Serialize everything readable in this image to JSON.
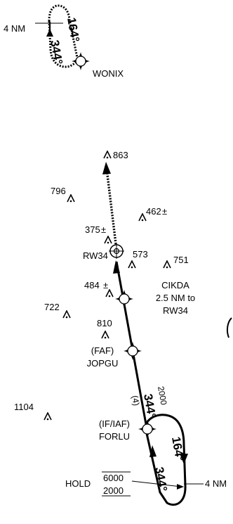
{
  "hold_top": {
    "distance": "4 NM",
    "inbound_course": "344°",
    "outbound_course": "164°",
    "fix_name": "WONIX"
  },
  "obstacles": [
    {
      "elevation": "863"
    },
    {
      "elevation": "796"
    },
    {
      "elevation": "462",
      "suffix": "±"
    },
    {
      "elevation": "375",
      "suffix": "±"
    },
    {
      "elevation": "573"
    },
    {
      "elevation": "751"
    },
    {
      "elevation": "484",
      "suffix": "±"
    },
    {
      "elevation": "722"
    },
    {
      "elevation": "810"
    },
    {
      "elevation": "1104"
    }
  ],
  "runway_waypoint": "RW34",
  "cikda": {
    "name": "CIKDA",
    "distance_line": "2.5 NM to",
    "reference": "RW34"
  },
  "faf": {
    "role": "(FAF)",
    "name": "JOPGU"
  },
  "final_segment": {
    "course": "344°",
    "altitude": "2000",
    "distance": "(4)"
  },
  "iaf": {
    "role": "(IF/IAF)",
    "name": "FORLU"
  },
  "hold_bottom": {
    "inbound_course": "344°",
    "outbound_course": "164°",
    "distance": "4 NM",
    "label": "HOLD",
    "max_altitude": "6000",
    "min_altitude": "2000"
  },
  "icons": [
    "obstacle-icon",
    "fly-over-waypoint-icon",
    "fix-icon",
    "north-arrow-icon"
  ]
}
